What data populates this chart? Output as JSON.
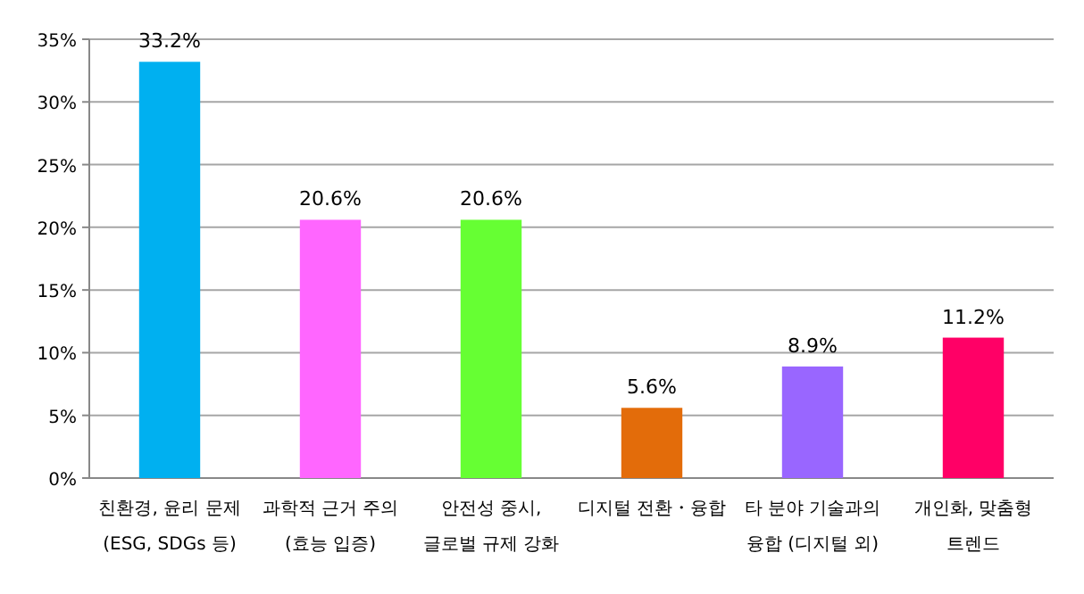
{
  "chart_data": {
    "type": "bar",
    "categories": [
      "친환경, 윤리 문제\n(ESG, SDGs 등)",
      "과학적 근거 주의\n(효능 입증)",
      "안전성 중시,\n글로벌 규제 강화",
      "디지털 전환・융합",
      "타 분야 기술과의\n융합 (디지털 외)",
      "개인화, 맞춤형\n트렌드"
    ],
    "values": [
      33.2,
      20.6,
      20.6,
      5.6,
      8.9,
      11.2
    ],
    "colors": [
      "#00b0f0",
      "#ff66ff",
      "#66ff33",
      "#e36c0a",
      "#9966ff",
      "#ff0066"
    ],
    "value_labels": [
      "33.2%",
      "20.6%",
      "20.6%",
      "5.6%",
      "8.9%",
      "11.2%"
    ],
    "ylim": [
      0,
      35
    ],
    "yticks": [
      {
        "value": 0,
        "label": "0%"
      },
      {
        "value": 5,
        "label": "5%"
      },
      {
        "value": 10,
        "label": "10%"
      },
      {
        "value": 15,
        "label": "15%"
      },
      {
        "value": 20,
        "label": "20%"
      },
      {
        "value": 25,
        "label": "25%"
      },
      {
        "value": 30,
        "label": "30%"
      },
      {
        "value": 35,
        "label": "35%"
      }
    ],
    "grid": "y"
  }
}
